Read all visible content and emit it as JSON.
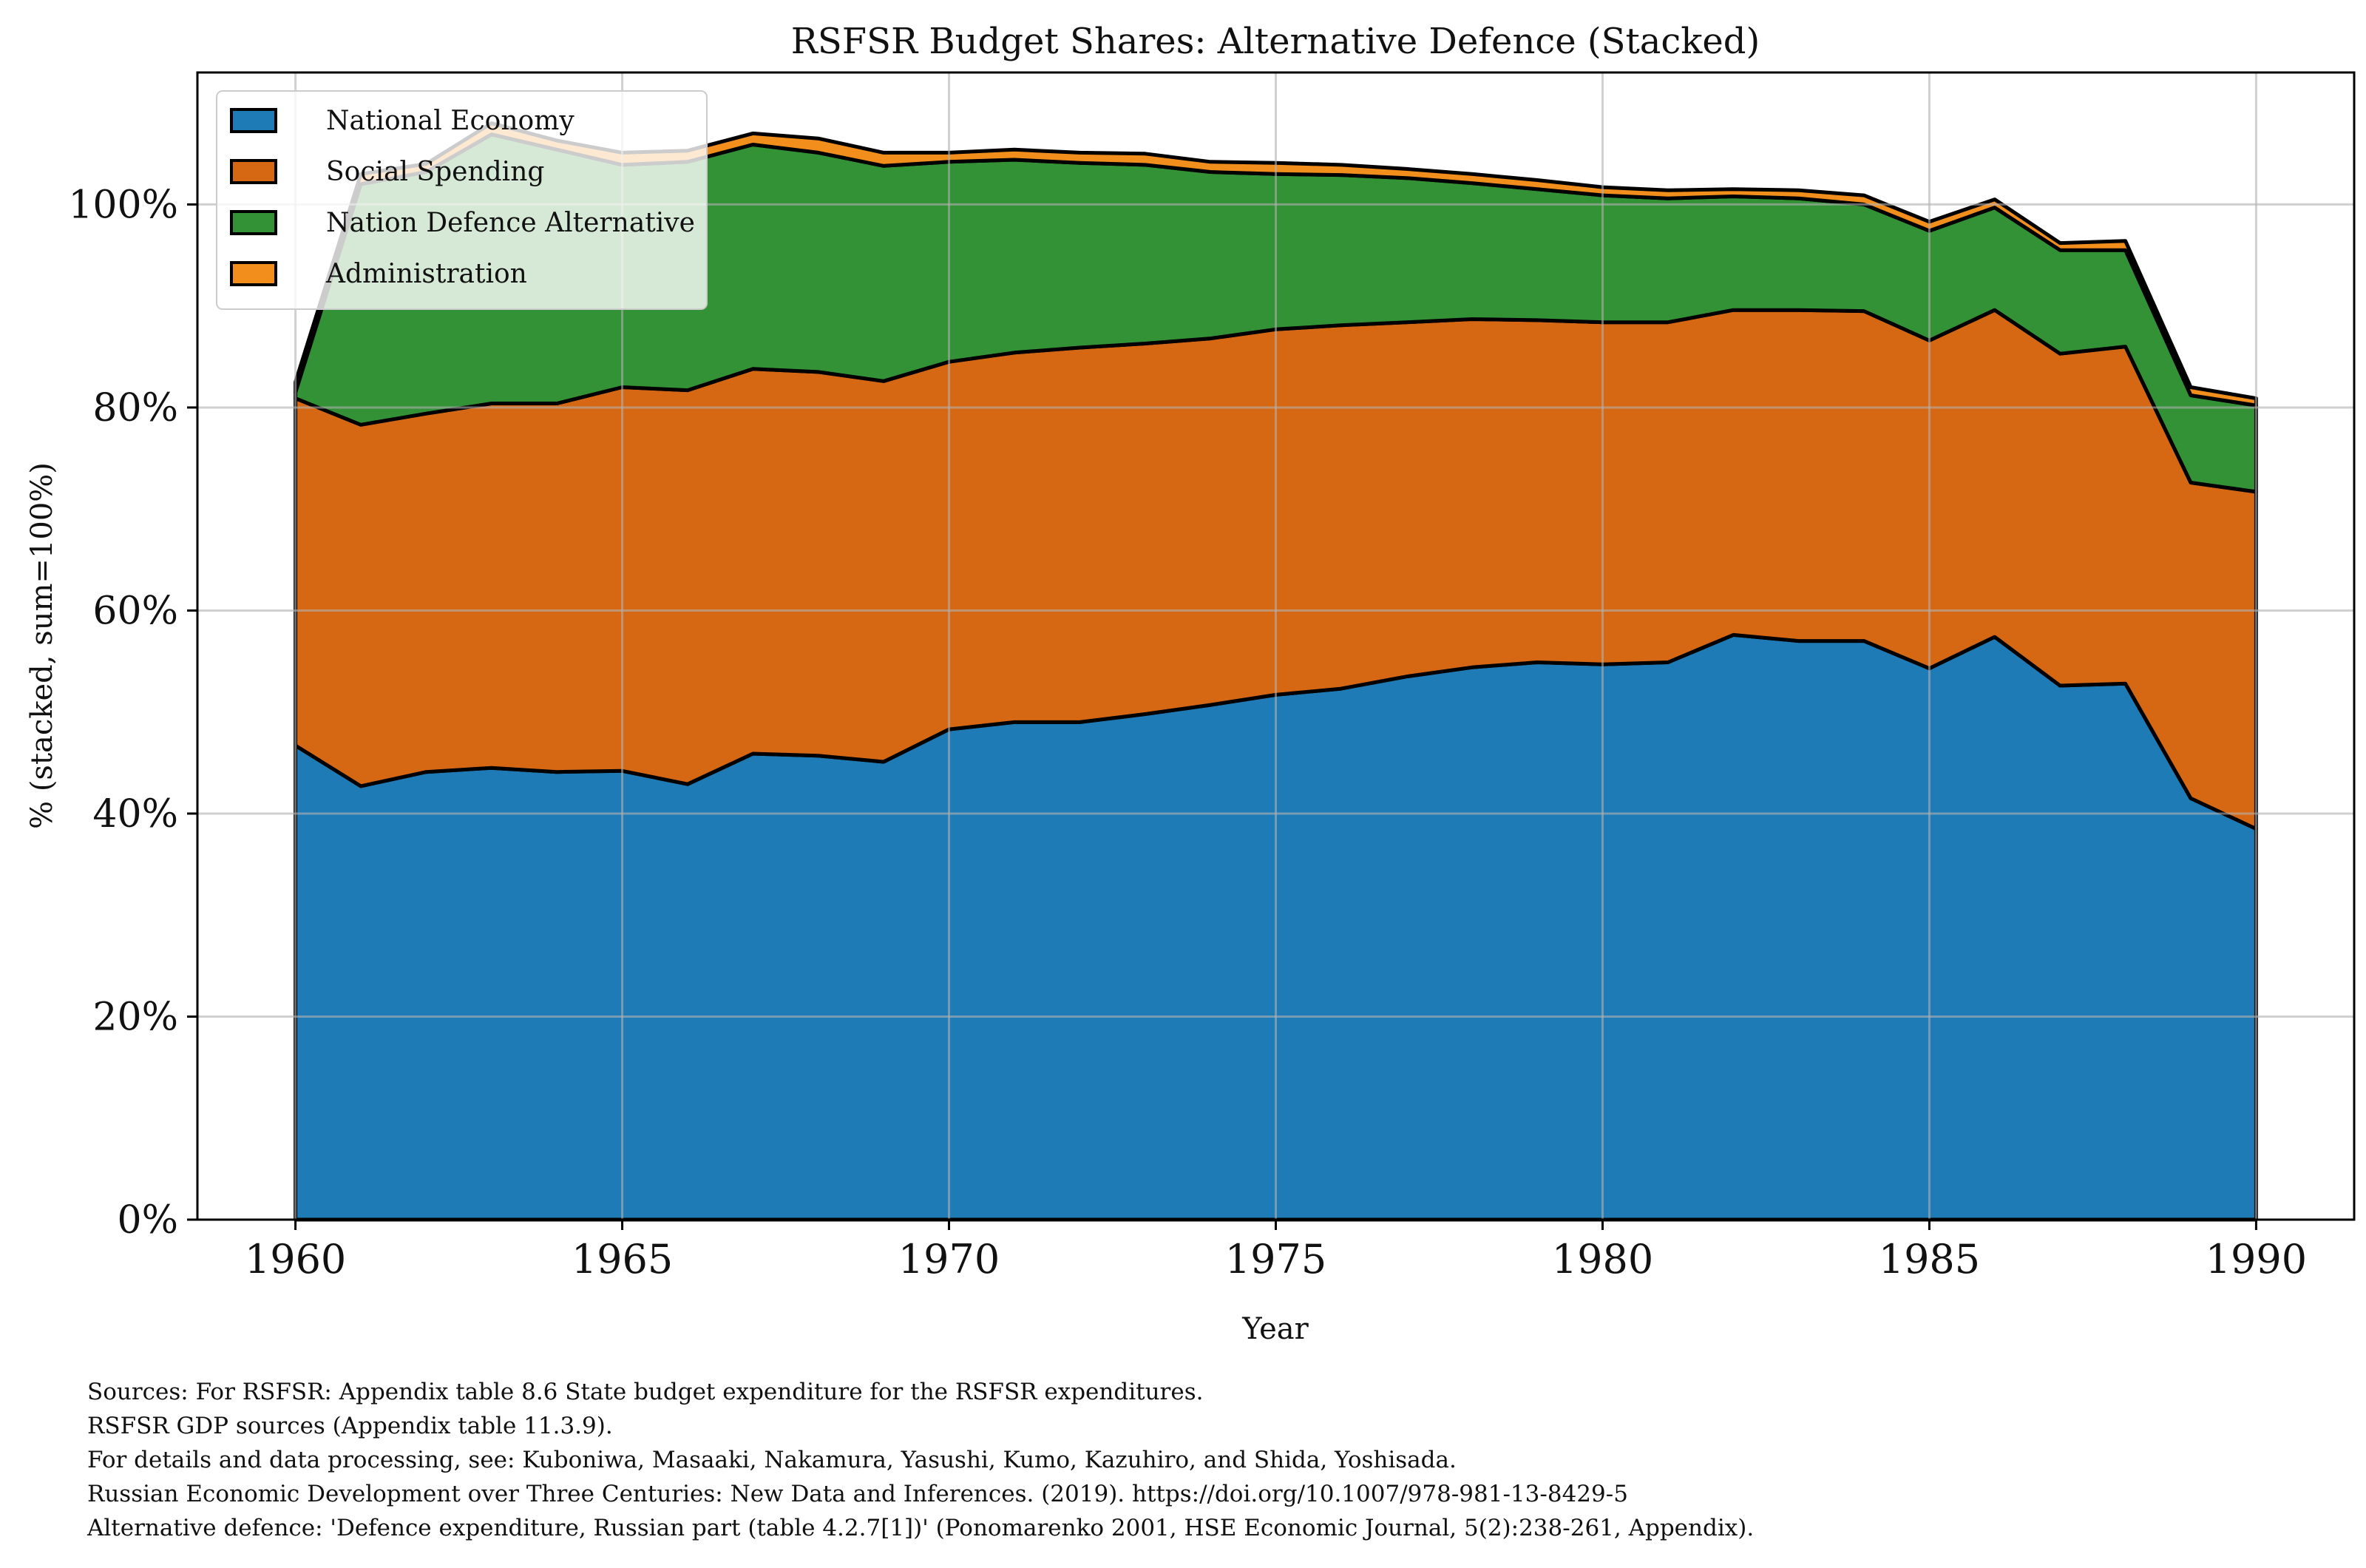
{
  "chart_data": {
    "type": "area",
    "stacked": true,
    "title": "RSFSR Budget Shares: Alternative Defence (Stacked)",
    "xlabel": "Year",
    "ylabel": "% (stacked, sum=100%)",
    "xlim": [
      1958.5,
      1991.5
    ],
    "ylim": [
      0,
      113
    ],
    "grid": true,
    "legend_position": "top-left",
    "x_ticks": [
      1960,
      1965,
      1970,
      1975,
      1980,
      1985,
      1990
    ],
    "x_tick_labels": [
      "1960",
      "1965",
      "1970",
      "1975",
      "1980",
      "1985",
      "1990"
    ],
    "y_ticks": [
      0,
      20,
      40,
      60,
      80,
      100
    ],
    "y_tick_labels": [
      "0%",
      "20%",
      "40%",
      "60%",
      "80%",
      "100%"
    ],
    "x": [
      1960,
      1961,
      1962,
      1963,
      1964,
      1965,
      1966,
      1967,
      1968,
      1969,
      1970,
      1971,
      1972,
      1973,
      1974,
      1975,
      1976,
      1977,
      1978,
      1979,
      1980,
      1981,
      1982,
      1983,
      1984,
      1985,
      1986,
      1987,
      1988,
      1989,
      1990
    ],
    "series": [
      {
        "name": "National Economy",
        "color": "#1f7bb6",
        "values": [
          46.7,
          42.7,
          44.1,
          44.5,
          44.1,
          44.2,
          42.9,
          45.9,
          45.7,
          45.1,
          48.3,
          49.0,
          49.0,
          49.8,
          50.7,
          51.7,
          52.3,
          53.5,
          54.4,
          54.9,
          54.7,
          54.9,
          57.6,
          57.0,
          57.0,
          54.3,
          57.4,
          52.6,
          52.8,
          41.5,
          38.5
        ]
      },
      {
        "name": "Social Spending",
        "color": "#d76813",
        "values": [
          34.2,
          35.6,
          35.3,
          35.9,
          36.3,
          37.8,
          38.8,
          37.9,
          37.8,
          37.5,
          36.2,
          36.4,
          36.9,
          36.5,
          36.1,
          36.0,
          35.8,
          34.9,
          34.3,
          33.7,
          33.7,
          33.5,
          32.0,
          32.6,
          32.5,
          32.3,
          32.2,
          32.7,
          33.2,
          31.1,
          33.2
        ]
      },
      {
        "name": "Nation Defence Alternative",
        "color": "#339236",
        "values": [
          0.6,
          23.7,
          23.8,
          26.5,
          25.0,
          21.9,
          22.5,
          22.1,
          21.6,
          21.2,
          19.7,
          19.0,
          18.2,
          17.6,
          16.4,
          15.3,
          14.8,
          14.2,
          13.4,
          12.9,
          12.5,
          12.2,
          11.2,
          11.0,
          10.5,
          10.8,
          10.1,
          10.2,
          9.5,
          8.6,
          8.5
        ]
      },
      {
        "name": "Administration",
        "color": "#f28e1c",
        "values": [
          1.0,
          1.0,
          0.8,
          1.1,
          0.9,
          1.2,
          1.1,
          1.1,
          1.4,
          1.3,
          0.9,
          1.0,
          1.0,
          1.1,
          1.0,
          1.1,
          1.0,
          0.9,
          0.9,
          0.9,
          0.8,
          0.8,
          0.7,
          0.8,
          0.9,
          0.9,
          0.8,
          0.7,
          0.9,
          0.8,
          0.7
        ]
      }
    ]
  },
  "footer": [
    "Sources: For RSFSR: Appendix table 8.6 State budget expenditure for the RSFSR expenditures.",
    "RSFSR GDP sources (Appendix table 11.3.9).",
    "For details and data processing, see: Kuboniwa, Masaaki, Nakamura, Yasushi, Kumo, Kazuhiro, and Shida, Yoshisada.",
    "Russian Economic Development over Three Centuries: New Data and Inferences. (2019). https://doi.org/10.1007/978-981-13-8429-5",
    "Alternative defence: 'Defence expenditure, Russian part (table 4.2.7[1])' (Ponomarenko 2001, HSE Economic Journal, 5(2):238-261, Appendix)."
  ]
}
